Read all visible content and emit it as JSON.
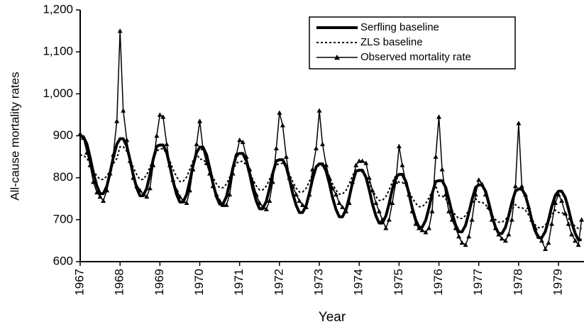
{
  "chart_data": {
    "type": "line",
    "x_label": "Year",
    "y_label": "All-cause mortality rates",
    "xlim": [
      1967,
      1979.64
    ],
    "xticks": [
      1967,
      1968,
      1969,
      1970,
      1971,
      1972,
      1973,
      1974,
      1975,
      1976,
      1977,
      1978,
      1979
    ],
    "ylim": [
      600,
      1200
    ],
    "yticks": [
      600,
      700,
      800,
      900,
      {
        "value": 1000,
        "label": "1,000"
      },
      {
        "value": 1100,
        "label": "1,100"
      },
      {
        "value": 1200,
        "label": "1,200"
      }
    ],
    "legend": "upper right",
    "x": [
      1967,
      1967.08,
      1967.17,
      1967.25,
      1967.33,
      1967.42,
      1967.5,
      1967.58,
      1967.67,
      1967.75,
      1967.83,
      1967.92,
      1968,
      1968.08,
      1968.17,
      1968.25,
      1968.33,
      1968.42,
      1968.5,
      1968.58,
      1968.67,
      1968.75,
      1968.83,
      1968.92,
      1969,
      1969.08,
      1969.17,
      1969.25,
      1969.33,
      1969.42,
      1969.5,
      1969.58,
      1969.67,
      1969.75,
      1969.83,
      1969.92,
      1970,
      1970.08,
      1970.17,
      1970.25,
      1970.33,
      1970.42,
      1970.5,
      1970.58,
      1970.67,
      1970.75,
      1970.83,
      1970.92,
      1971,
      1971.08,
      1971.17,
      1971.25,
      1971.33,
      1971.42,
      1971.5,
      1971.58,
      1971.67,
      1971.75,
      1971.83,
      1971.92,
      1972,
      1972.08,
      1972.17,
      1972.25,
      1972.33,
      1972.42,
      1972.5,
      1972.58,
      1972.67,
      1972.75,
      1972.83,
      1972.92,
      1973,
      1973.08,
      1973.17,
      1973.25,
      1973.33,
      1973.42,
      1973.5,
      1973.58,
      1973.67,
      1973.75,
      1973.83,
      1973.92,
      1974,
      1974.08,
      1974.17,
      1974.25,
      1974.33,
      1974.42,
      1974.5,
      1974.58,
      1974.67,
      1974.75,
      1974.83,
      1974.92,
      1975,
      1975.08,
      1975.17,
      1975.25,
      1975.33,
      1975.42,
      1975.5,
      1975.58,
      1975.67,
      1975.75,
      1975.83,
      1975.92,
      1976,
      1976.08,
      1976.17,
      1976.25,
      1976.33,
      1976.42,
      1976.5,
      1976.58,
      1976.67,
      1976.75,
      1976.83,
      1976.92,
      1977,
      1977.08,
      1977.17,
      1977.25,
      1977.33,
      1977.42,
      1977.5,
      1977.58,
      1977.67,
      1977.75,
      1977.83,
      1977.92,
      1978,
      1978.08,
      1978.17,
      1978.25,
      1978.33,
      1978.42,
      1978.5,
      1978.58,
      1978.67,
      1978.75,
      1978.83,
      1978.92,
      1979,
      1979.08,
      1979.17,
      1979.25,
      1979.33,
      1979.42,
      1979.5,
      1979.58
    ],
    "series": [
      {
        "name": "Serfling baseline",
        "color": "#000000",
        "line_style": "thick",
        "marker": "none",
        "values": [
          898,
          898,
          880,
          848,
          812,
          780,
          762,
          762,
          780,
          812,
          848,
          880,
          893,
          893,
          875,
          843,
          807,
          775,
          757,
          757,
          775,
          807,
          843,
          875,
          878,
          878,
          860,
          828,
          792,
          760,
          742,
          742,
          760,
          792,
          828,
          860,
          873,
          873,
          855,
          823,
          787,
          755,
          737,
          737,
          755,
          787,
          823,
          855,
          858,
          858,
          840,
          810,
          774,
          744,
          726,
          726,
          744,
          774,
          810,
          840,
          843,
          843,
          826,
          797,
          763,
          734,
          717,
          717,
          734,
          763,
          797,
          826,
          833,
          833,
          816,
          787,
          753,
          724,
          707,
          707,
          724,
          753,
          787,
          816,
          818,
          818,
          801,
          772,
          738,
          709,
          692,
          692,
          709,
          738,
          772,
          801,
          808,
          808,
          791,
          762,
          728,
          699,
          682,
          682,
          699,
          728,
          762,
          791,
          793,
          793,
          777,
          748,
          716,
          687,
          671,
          671,
          687,
          716,
          748,
          777,
          783,
          783,
          768,
          741,
          709,
          682,
          667,
          667,
          682,
          709,
          741,
          768,
          773,
          773,
          758,
          731,
          699,
          672,
          657,
          657,
          672,
          699,
          731,
          758,
          768,
          768,
          753,
          726,
          694,
          667,
          652,
          652
        ]
      },
      {
        "name": "ZLS baseline",
        "color": "#000000",
        "line_style": "dotted",
        "marker": "none",
        "values": [
          854,
          854,
          846,
          833,
          817,
          804,
          796,
          796,
          804,
          817,
          833,
          846,
          874,
          874,
          863,
          845,
          825,
          807,
          796,
          796,
          807,
          825,
          845,
          863,
          869,
          869,
          858,
          840,
          820,
          802,
          791,
          791,
          802,
          820,
          840,
          858,
          844,
          844,
          835,
          819,
          801,
          785,
          776,
          776,
          785,
          801,
          819,
          835,
          839,
          839,
          830,
          814,
          796,
          780,
          771,
          771,
          780,
          796,
          814,
          830,
          834,
          834,
          825,
          809,
          791,
          775,
          766,
          766,
          775,
          791,
          809,
          825,
          829,
          829,
          820,
          804,
          786,
          770,
          761,
          761,
          770,
          786,
          804,
          820,
          814,
          814,
          805,
          789,
          771,
          755,
          746,
          746,
          755,
          771,
          789,
          805,
          789,
          789,
          781,
          768,
          752,
          739,
          731,
          731,
          739,
          752,
          768,
          781,
          757,
          757,
          750,
          737,
          723,
          710,
          703,
          703,
          710,
          723,
          737,
          750,
          742,
          742,
          736,
          724,
          712,
          700,
          694,
          694,
          700,
          712,
          724,
          736,
          729,
          729,
          723,
          711,
          699,
          687,
          681,
          681,
          687,
          699,
          711,
          723,
          717,
          717,
          712,
          703,
          693,
          684,
          679,
          679
        ]
      },
      {
        "name": "Observed mortality rate",
        "color": "#000000",
        "line_style": "thin",
        "marker": "triangle",
        "values": [
          905,
          895,
          860,
          830,
          790,
          765,
          755,
          745,
          770,
          810,
          855,
          935,
          1150,
          960,
          890,
          840,
          800,
          780,
          770,
          760,
          755,
          775,
          830,
          900,
          950,
          945,
          880,
          830,
          795,
          770,
          755,
          745,
          740,
          770,
          820,
          880,
          935,
          870,
          835,
          810,
          780,
          760,
          745,
          735,
          735,
          760,
          810,
          855,
          890,
          885,
          850,
          820,
          790,
          760,
          740,
          730,
          725,
          745,
          790,
          870,
          955,
          925,
          850,
          800,
          780,
          760,
          745,
          735,
          730,
          760,
          820,
          870,
          960,
          880,
          830,
          800,
          775,
          760,
          740,
          730,
          720,
          740,
          790,
          830,
          840,
          840,
          835,
          800,
          770,
          740,
          720,
          700,
          680,
          700,
          740,
          790,
          875,
          830,
          790,
          760,
          720,
          690,
          680,
          675,
          670,
          680,
          720,
          850,
          945,
          820,
          760,
          720,
          700,
          680,
          660,
          645,
          640,
          660,
          700,
          760,
          795,
          785,
          760,
          730,
          700,
          680,
          665,
          655,
          650,
          665,
          700,
          780,
          930,
          780,
          760,
          730,
          700,
          680,
          660,
          650,
          630,
          645,
          690,
          740,
          760,
          745,
          715,
          690,
          665,
          650,
          640,
          700
        ]
      }
    ]
  }
}
